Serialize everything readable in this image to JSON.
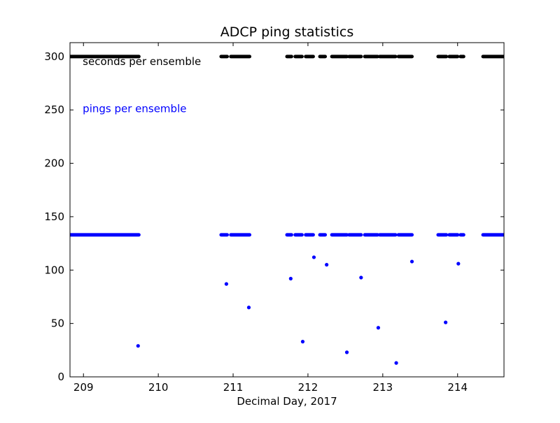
{
  "chart_data": {
    "type": "scatter",
    "title": "ADCP  ping statistics",
    "xlabel": "Decimal Day, 2017",
    "ylabel": "",
    "xlim": [
      208.82,
      214.62
    ],
    "ylim": [
      0,
      313
    ],
    "xticks": [
      209,
      210,
      211,
      212,
      213,
      214
    ],
    "xtick_labels": [
      "209",
      "210",
      "211",
      "212",
      "213",
      "214"
    ],
    "yticks": [
      0,
      50,
      100,
      150,
      200,
      250,
      300
    ],
    "ytick_labels": [
      "0",
      "50",
      "100",
      "150",
      "200",
      "250",
      "300"
    ],
    "grid": false,
    "annotations": [
      {
        "text": "seconds per ensemble",
        "color": "#000000",
        "x": 208.99,
        "y": 292
      },
      {
        "text": "pings per ensemble",
        "color": "#0000ff",
        "x": 208.99,
        "y": 248
      }
    ],
    "series": [
      {
        "color": "#000000",
        "marker": "dot",
        "y_value": 300,
        "x_segments": [
          [
            208.82,
            209.74
          ],
          [
            210.84,
            210.92
          ],
          [
            210.97,
            211.22
          ],
          [
            211.72,
            211.78
          ],
          [
            211.83,
            211.92
          ],
          [
            211.97,
            212.07
          ],
          [
            212.16,
            212.23
          ],
          [
            212.32,
            212.52
          ],
          [
            212.55,
            212.71
          ],
          [
            212.76,
            212.93
          ],
          [
            212.96,
            213.17
          ],
          [
            213.21,
            213.39
          ],
          [
            213.74,
            213.85
          ],
          [
            213.89,
            214.0
          ],
          [
            214.04,
            214.08
          ],
          [
            214.34,
            214.62
          ]
        ]
      },
      {
        "color": "#0000ff",
        "marker": "dot",
        "y_value": 133,
        "x_segments": [
          [
            208.82,
            209.74
          ],
          [
            210.84,
            210.92
          ],
          [
            210.97,
            211.22
          ],
          [
            211.72,
            211.78
          ],
          [
            211.83,
            211.92
          ],
          [
            211.97,
            212.07
          ],
          [
            212.16,
            212.23
          ],
          [
            212.32,
            212.52
          ],
          [
            212.55,
            212.71
          ],
          [
            212.76,
            212.93
          ],
          [
            212.96,
            213.17
          ],
          [
            213.21,
            213.39
          ],
          [
            213.74,
            213.85
          ],
          [
            213.89,
            214.0
          ],
          [
            214.04,
            214.08
          ],
          [
            214.34,
            214.62
          ]
        ],
        "points": [
          {
            "x": 209.73,
            "y": 29
          },
          {
            "x": 210.91,
            "y": 87
          },
          {
            "x": 211.21,
            "y": 65
          },
          {
            "x": 211.77,
            "y": 92
          },
          {
            "x": 211.93,
            "y": 33
          },
          {
            "x": 212.08,
            "y": 112
          },
          {
            "x": 212.25,
            "y": 105
          },
          {
            "x": 212.52,
            "y": 23
          },
          {
            "x": 212.71,
            "y": 93
          },
          {
            "x": 212.94,
            "y": 46
          },
          {
            "x": 213.18,
            "y": 13
          },
          {
            "x": 213.39,
            "y": 108
          },
          {
            "x": 213.84,
            "y": 51
          },
          {
            "x": 214.01,
            "y": 106
          }
        ]
      }
    ]
  }
}
